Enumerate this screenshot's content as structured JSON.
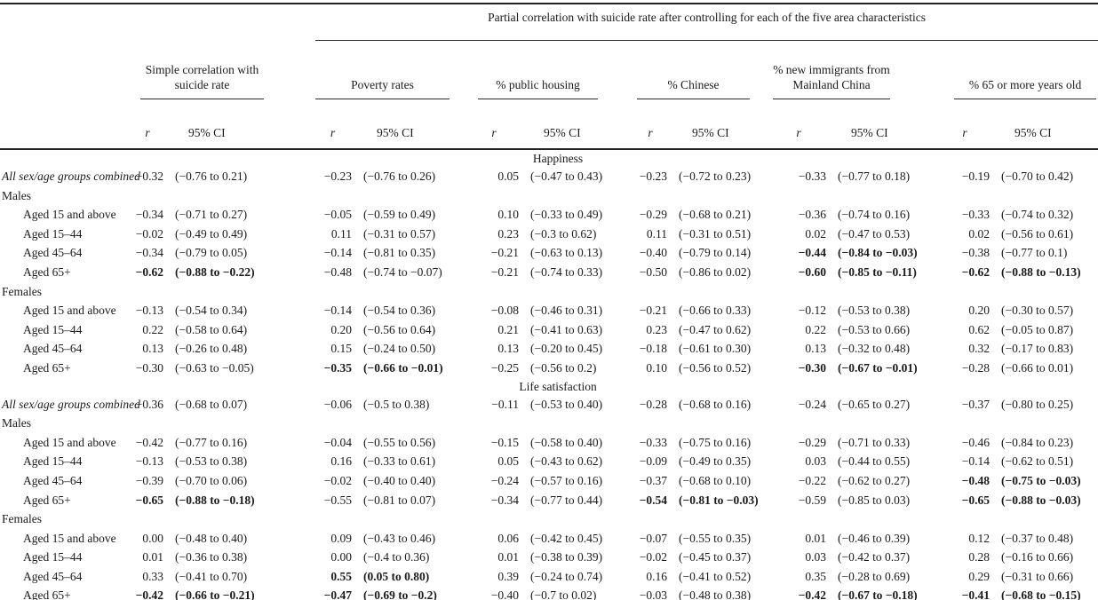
{
  "table": {
    "partial_header": "Partial correlation with suicide rate after controlling for each of the five area characteristics",
    "column_groups": [
      "Simple correlation with suicide rate",
      "Poverty rates",
      "% public housing",
      "% Chinese",
      "% new immigrants from Mainland China",
      "% 65 or more years old"
    ],
    "subheader_r": "r",
    "subheader_ci": "95% CI",
    "sections": [
      {
        "title": "Happiness",
        "rows": [
          {
            "label": "All sex/age groups combined",
            "variant": "combined",
            "cells": [
              {
                "r": "−0.32",
                "ci": "(−0.76 to 0.21)"
              },
              {
                "r": "−0.23",
                "ci": "(−0.76 to 0.26)"
              },
              {
                "r": "0.05",
                "ci": "(−0.47 to 0.43)"
              },
              {
                "r": "−0.23",
                "ci": "(−0.72 to 0.23)"
              },
              {
                "r": "−0.33",
                "ci": "(−0.77 to 0.18)"
              },
              {
                "r": "−0.19",
                "ci": "(−0.70 to 0.42)"
              }
            ]
          },
          {
            "label": "Males",
            "variant": "group",
            "cells": null
          },
          {
            "label": "Aged 15 and above",
            "variant": "age",
            "cells": [
              {
                "r": "−0.34",
                "ci": "(−0.71 to 0.27)"
              },
              {
                "r": "−0.05",
                "ci": "(−0.59 to 0.49)"
              },
              {
                "r": "0.10",
                "ci": "(−0.33 to 0.49)"
              },
              {
                "r": "−0.29",
                "ci": "(−0.68 to 0.21)"
              },
              {
                "r": "−0.36",
                "ci": "(−0.74 to 0.16)"
              },
              {
                "r": "−0.33",
                "ci": "(−0.74 to 0.32)"
              }
            ]
          },
          {
            "label": "Aged 15–44",
            "variant": "age",
            "cells": [
              {
                "r": "−0.02",
                "ci": "(−0.49 to 0.49)"
              },
              {
                "r": "0.11",
                "ci": "(−0.31 to 0.57)"
              },
              {
                "r": "0.23",
                "ci": "(−0.3 to 0.62)"
              },
              {
                "r": "0.11",
                "ci": "(−0.31 to 0.51)"
              },
              {
                "r": "0.02",
                "ci": "(−0.47 to 0.53)"
              },
              {
                "r": "0.02",
                "ci": "(−0.56 to 0.61)"
              }
            ]
          },
          {
            "label": "Aged 45–64",
            "variant": "age",
            "cells": [
              {
                "r": "−0.34",
                "ci": "(−0.79 to 0.05)"
              },
              {
                "r": "−0.14",
                "ci": "(−0.81 to 0.35)"
              },
              {
                "r": "−0.21",
                "ci": "(−0.63 to 0.13)"
              },
              {
                "r": "−0.40",
                "ci": "(−0.79 to 0.14)"
              },
              {
                "r": "−0.44",
                "ci": "(−0.84 to −0.03)",
                "bold": true
              },
              {
                "r": "−0.38",
                "ci": "(−0.77 to 0.1)"
              }
            ]
          },
          {
            "label": "Aged 65+",
            "variant": "age",
            "cells": [
              {
                "r": "−0.62",
                "ci": "(−0.88 to −0.22)",
                "bold": true
              },
              {
                "r": "−0.48",
                "ci": "(−0.74 to −0.07)"
              },
              {
                "r": "−0.21",
                "ci": "(−0.74 to 0.33)"
              },
              {
                "r": "−0.50",
                "ci": "(−0.86 to 0.02)"
              },
              {
                "r": "−0.60",
                "ci": "(−0.85 to −0.11)",
                "bold": true
              },
              {
                "r": "−0.62",
                "ci": "(−0.88 to −0.13)",
                "bold": true
              }
            ]
          },
          {
            "label": "Females",
            "variant": "group",
            "cells": null
          },
          {
            "label": "Aged 15 and above",
            "variant": "age",
            "cells": [
              {
                "r": "−0.13",
                "ci": "(−0.54 to 0.34)"
              },
              {
                "r": "−0.14",
                "ci": "(−0.54 to 0.36)"
              },
              {
                "r": "−0.08",
                "ci": "(−0.46 to 0.31)"
              },
              {
                "r": "−0.21",
                "ci": "(−0.66 to 0.33)"
              },
              {
                "r": "−0.12",
                "ci": "(−0.53 to 0.38)"
              },
              {
                "r": "0.20",
                "ci": "(−0.30 to 0.57)"
              }
            ]
          },
          {
            "label": "Aged 15–44",
            "variant": "age",
            "cells": [
              {
                "r": "0.22",
                "ci": "(−0.58 to 0.64)"
              },
              {
                "r": "0.20",
                "ci": "(−0.56 to 0.64)"
              },
              {
                "r": "0.21",
                "ci": "(−0.41 to 0.63)"
              },
              {
                "r": "0.23",
                "ci": "(−0.47 to 0.62)"
              },
              {
                "r": "0.22",
                "ci": "(−0.53 to 0.66)"
              },
              {
                "r": "0.62",
                "ci": "(−0.05 to 0.87)"
              }
            ]
          },
          {
            "label": "Aged 45–64",
            "variant": "age",
            "cells": [
              {
                "r": "0.13",
                "ci": "(−0.26 to 0.48)"
              },
              {
                "r": "0.15",
                "ci": "(−0.24 to 0.50)"
              },
              {
                "r": "0.13",
                "ci": "(−0.20 to 0.45)"
              },
              {
                "r": "−0.18",
                "ci": "(−0.61 to 0.30)"
              },
              {
                "r": "0.13",
                "ci": "(−0.32 to 0.48)"
              },
              {
                "r": "0.32",
                "ci": "(−0.17 to 0.83)"
              }
            ]
          },
          {
            "label": "Aged 65+",
            "variant": "age",
            "cells": [
              {
                "r": "−0.30",
                "ci": "(−0.63 to −0.05)"
              },
              {
                "r": "−0.35",
                "ci": "(−0.66 to −0.01)",
                "bold": true
              },
              {
                "r": "−0.25",
                "ci": "(−0.56 to 0.2)"
              },
              {
                "r": "0.10",
                "ci": "(−0.56 to 0.52)"
              },
              {
                "r": "−0.30",
                "ci": "(−0.67 to −0.01)",
                "bold": true
              },
              {
                "r": "−0.28",
                "ci": "(−0.66 to 0.01)"
              }
            ]
          }
        ]
      },
      {
        "title": "Life satisfaction",
        "rows": [
          {
            "label": "All sex/age groups combined",
            "variant": "combined",
            "cells": [
              {
                "r": "−0.36",
                "ci": "(−0.68 to 0.07)"
              },
              {
                "r": "−0.06",
                "ci": "(−0.5 to 0.38)"
              },
              {
                "r": "−0.11",
                "ci": "(−0.53 to 0.40)"
              },
              {
                "r": "−0.28",
                "ci": "(−0.68 to 0.16)"
              },
              {
                "r": "−0.24",
                "ci": "(−0.65 to 0.27)"
              },
              {
                "r": "−0.37",
                "ci": "(−0.80 to 0.25)"
              }
            ]
          },
          {
            "label": "Males",
            "variant": "group",
            "cells": null
          },
          {
            "label": "Aged 15 and above",
            "variant": "age",
            "cells": [
              {
                "r": "−0.42",
                "ci": "(−0.77 to 0.16)"
              },
              {
                "r": "−0.04",
                "ci": "(−0.55 to 0.56)"
              },
              {
                "r": "−0.15",
                "ci": "(−0.58 to 0.40)"
              },
              {
                "r": "−0.33",
                "ci": "(−0.75 to 0.16)"
              },
              {
                "r": "−0.29",
                "ci": "(−0.71 to 0.33)"
              },
              {
                "r": "−0.46",
                "ci": "(−0.84 to 0.23)"
              }
            ]
          },
          {
            "label": "Aged 15–44",
            "variant": "age",
            "cells": [
              {
                "r": "−0.13",
                "ci": "(−0.53 to 0.38)"
              },
              {
                "r": "0.16",
                "ci": "(−0.33 to 0.61)"
              },
              {
                "r": "0.05",
                "ci": "(−0.43 to 0.62)"
              },
              {
                "r": "−0.09",
                "ci": "(−0.49 to 0.35)"
              },
              {
                "r": "0.03",
                "ci": "(−0.44 to 0.55)"
              },
              {
                "r": "−0.14",
                "ci": "(−0.62 to 0.51)"
              }
            ]
          },
          {
            "label": "Aged 45–64",
            "variant": "age",
            "cells": [
              {
                "r": "−0.39",
                "ci": "(−0.70 to 0.06)"
              },
              {
                "r": "−0.02",
                "ci": "(−0.40 to 0.40)"
              },
              {
                "r": "−0.24",
                "ci": "(−0.57 to 0.16)"
              },
              {
                "r": "−0.37",
                "ci": "(−0.68 to 0.10)"
              },
              {
                "r": "−0.22",
                "ci": "(−0.62 to 0.27)"
              },
              {
                "r": "−0.48",
                "ci": "(−0.75 to −0.03)",
                "bold": true
              }
            ]
          },
          {
            "label": "Aged 65+",
            "variant": "age",
            "cells": [
              {
                "r": "−0.65",
                "ci": "(−0.88 to −0.18)",
                "bold": true
              },
              {
                "r": "−0.55",
                "ci": "(−0.81 to 0.07)"
              },
              {
                "r": "−0.34",
                "ci": "(−0.77 to 0.44)"
              },
              {
                "r": "−0.54",
                "ci": "(−0.81 to −0.03)",
                "bold": true
              },
              {
                "r": "−0.59",
                "ci": "(−0.85 to 0.03)"
              },
              {
                "r": "−0.65",
                "ci": "(−0.88 to −0.03)",
                "bold": true
              }
            ]
          },
          {
            "label": "Females",
            "variant": "group",
            "cells": null
          },
          {
            "label": "Aged 15 and above",
            "variant": "age",
            "cells": [
              {
                "r": "0.00",
                "ci": "(−0.48 to 0.40)"
              },
              {
                "r": "0.09",
                "ci": "(−0.43 to 0.46)"
              },
              {
                "r": "0.06",
                "ci": "(−0.42 to 0.45)"
              },
              {
                "r": "−0.07",
                "ci": "(−0.55 to 0.35)"
              },
              {
                "r": "0.01",
                "ci": "(−0.46 to 0.39)"
              },
              {
                "r": "0.12",
                "ci": "(−0.37 to 0.48)"
              }
            ]
          },
          {
            "label": "Aged 15–44",
            "variant": "age",
            "cells": [
              {
                "r": "0.01",
                "ci": "(−0.36 to 0.38)"
              },
              {
                "r": "0.00",
                "ci": "(−0.4 to 0.36)"
              },
              {
                "r": "0.01",
                "ci": "(−0.38 to 0.39)"
              },
              {
                "r": "−0.02",
                "ci": "(−0.45 to 0.37)"
              },
              {
                "r": "0.03",
                "ci": "(−0.42 to 0.37)"
              },
              {
                "r": "0.28",
                "ci": "(−0.16 to 0.66)"
              }
            ]
          },
          {
            "label": "Aged 45–64",
            "variant": "age",
            "cells": [
              {
                "r": "0.33",
                "ci": "(−0.41 to 0.70)"
              },
              {
                "r": "0.55",
                "ci": "(0.05 to 0.80)",
                "bold": true
              },
              {
                "r": "0.39",
                "ci": "(−0.24 to 0.74)"
              },
              {
                "r": "0.16",
                "ci": "(−0.41 to 0.52)"
              },
              {
                "r": "0.35",
                "ci": "(−0.28 to 0.69)"
              },
              {
                "r": "0.29",
                "ci": "(−0.31 to 0.66)"
              }
            ]
          },
          {
            "label": "Aged 65+",
            "variant": "age",
            "cells": [
              {
                "r": "−0.42",
                "ci": "(−0.66 to −0.21)",
                "bold": true
              },
              {
                "r": "−0.47",
                "ci": "(−0.69 to −0.2)",
                "bold": true
              },
              {
                "r": "−0.40",
                "ci": "(−0.7 to 0.02)"
              },
              {
                "r": "−0.03",
                "ci": "(−0.48 to 0.38)"
              },
              {
                "r": "−0.42",
                "ci": "(−0.67 to −0.18)",
                "bold": true
              },
              {
                "r": "−0.41",
                "ci": "(−0.68 to −0.15)",
                "bold": true
              }
            ]
          }
        ]
      }
    ]
  }
}
